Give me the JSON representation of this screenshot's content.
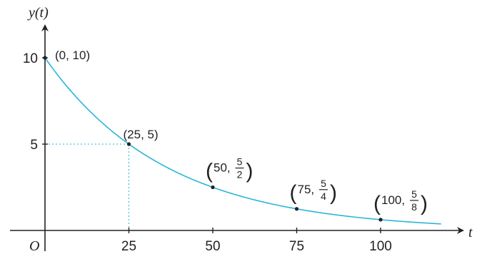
{
  "chart_data": {
    "type": "line",
    "xlabel": "t",
    "ylabel": "y(t)",
    "origin_label": "O",
    "xlim": [
      0,
      118
    ],
    "ylim": [
      0,
      11
    ],
    "x_ticks": [
      25,
      50,
      75,
      100
    ],
    "y_ticks": [
      5,
      10
    ],
    "grid": false,
    "line_color": "#29b6d8",
    "guide_color": "#29b6d8",
    "series": [
      {
        "function": "y = 10 * 2^(-t/25)",
        "x_start": 0,
        "x_end": 118
      }
    ],
    "points": [
      {
        "x": 0,
        "y": 10,
        "label": "(0, 10)"
      },
      {
        "x": 25,
        "y": 5,
        "label": "(25, 5)"
      },
      {
        "x": 50,
        "y": 2.5,
        "label_x": "50",
        "label_num": "5",
        "label_den": "2"
      },
      {
        "x": 75,
        "y": 1.25,
        "label_x": "75",
        "label_num": "5",
        "label_den": "4"
      },
      {
        "x": 100,
        "y": 0.625,
        "label_x": "100",
        "label_num": "5",
        "label_den": "8"
      }
    ],
    "guides": [
      {
        "x": 25,
        "y": 5
      }
    ]
  }
}
